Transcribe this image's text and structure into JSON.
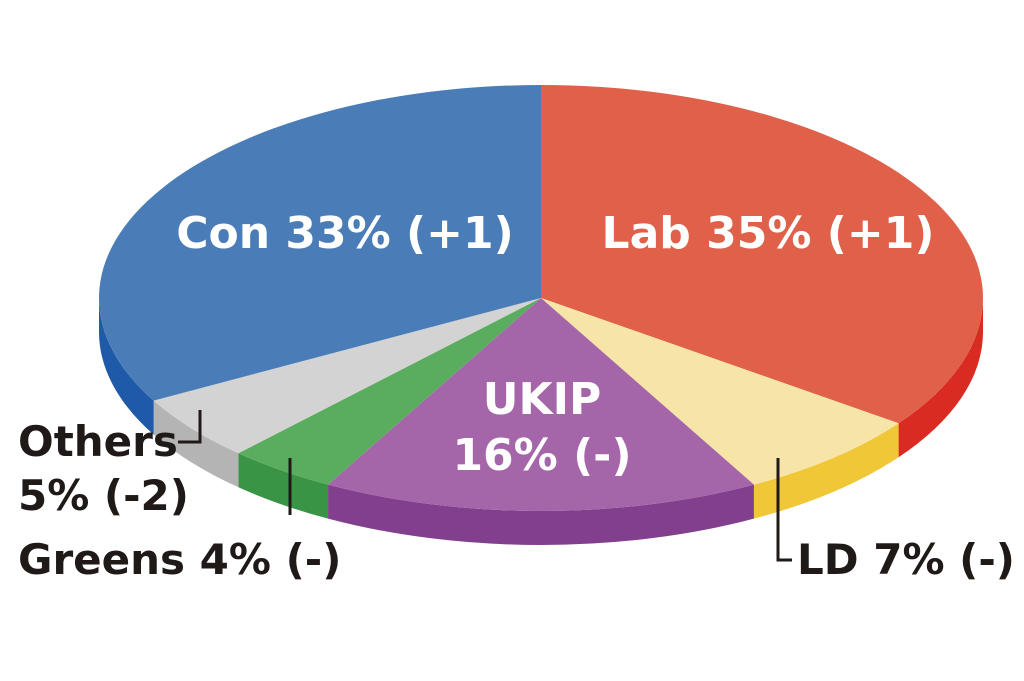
{
  "chart_data": {
    "type": "pie",
    "style": "3d",
    "slices": [
      {
        "party": "Lab",
        "value": 35,
        "change": "+1",
        "top_color": "#e0604a",
        "side_color": "#d92b22",
        "label": "Lab 35% (+1)"
      },
      {
        "party": "LD",
        "value": 7,
        "change": "-",
        "top_color": "#f6e4a8",
        "side_color": "#f0c736",
        "label": "LD 7% (-)"
      },
      {
        "party": "UKIP",
        "value": 16,
        "change": "-",
        "top_color": "#a565a9",
        "side_color": "#823f8e",
        "label_line1": "UKIP",
        "label_line2": "16% (-)"
      },
      {
        "party": "Greens",
        "value": 4,
        "change": "-",
        "top_color": "#5aac5e",
        "side_color": "#399446",
        "label": "Greens 4% (-)"
      },
      {
        "party": "Others",
        "value": 5,
        "change": "-2",
        "top_color": "#d3d3d3",
        "side_color": "#b4b4b4",
        "label_line1": "Others",
        "label_line2": "5% (-2)"
      },
      {
        "party": "Con",
        "value": 33,
        "change": "+1",
        "top_color": "#4a7db8",
        "side_color": "#1f5aa8",
        "label": "Con 33% (+1)"
      }
    ]
  }
}
